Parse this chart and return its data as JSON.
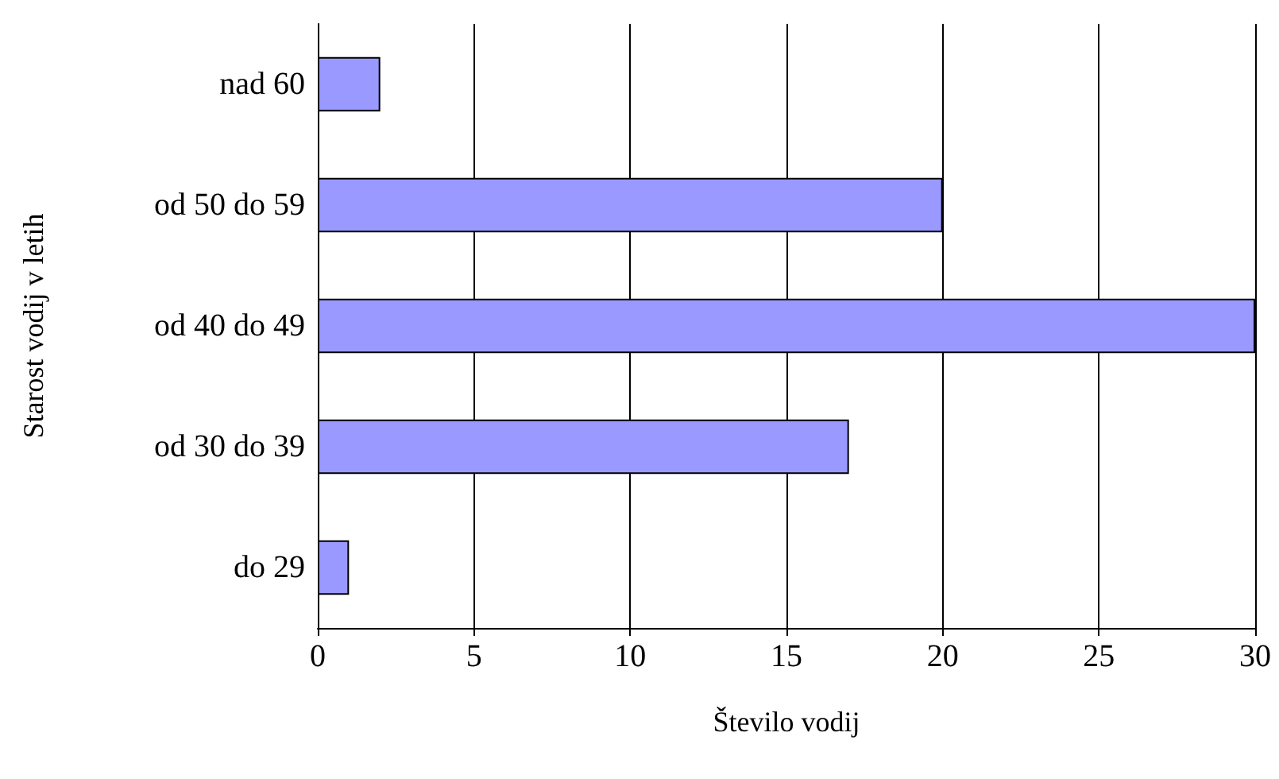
{
  "chart_data": {
    "type": "bar",
    "orientation": "horizontal",
    "xlabel": "Število vodij",
    "ylabel": "Starost vodij v letih",
    "categories": [
      "nad 60",
      "od 50 do 59",
      "od 40 do 49",
      "od 30 do 39",
      "do 29"
    ],
    "values": [
      2,
      20,
      30,
      17,
      1
    ],
    "color": "#9999ff",
    "xlim": [
      0,
      30
    ],
    "xticks": [
      0,
      5,
      10,
      15,
      20,
      25,
      30
    ],
    "grid": "x"
  }
}
